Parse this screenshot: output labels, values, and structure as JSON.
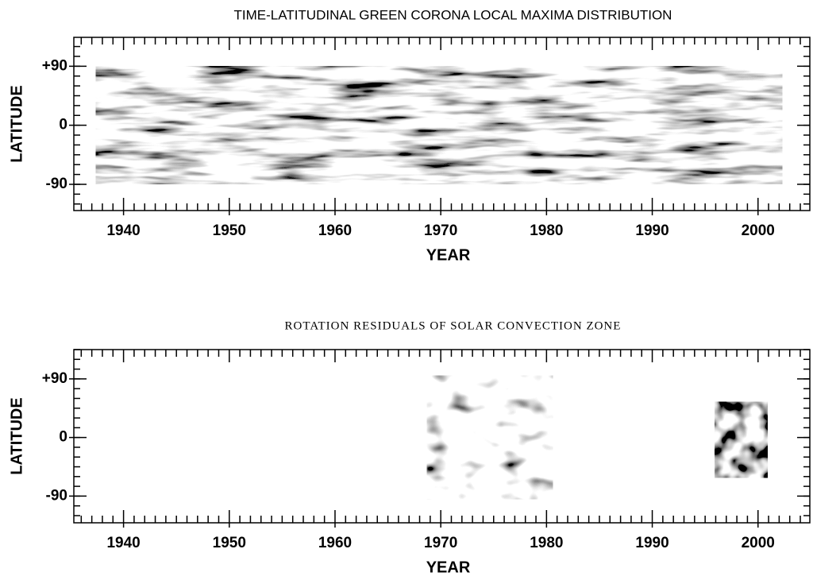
{
  "chart_data": [
    {
      "type": "heatmap",
      "title": "TIME-LATITUDINAL GREEN CORONA LOCAL MAXIMA DISTRIBUTION",
      "xlabel": "YEAR",
      "ylabel": "LATITUDE",
      "xlim": [
        1935.3,
        2004.9
      ],
      "ylim": [
        -130,
        134
      ],
      "xticks": [
        1940,
        1950,
        1960,
        1970,
        1980,
        1990,
        2000
      ],
      "yticks": [
        -90,
        0,
        {
          "value": 90,
          "label": "+90"
        }
      ],
      "x_minor_step": 1,
      "y_minor_step": 15,
      "images": [
        {
          "xlim": [
            1937.4,
            2002.3
          ],
          "ylim": [
            -90,
            90
          ]
        }
      ]
    },
    {
      "type": "heatmap",
      "title": "ROTATION RESIDUALS OF SOLAR CONVECTION ZONE",
      "xlabel": "YEAR",
      "ylabel": "LATITUDE",
      "xlim": [
        1935.3,
        2004.9
      ],
      "ylim": [
        -131,
        135
      ],
      "xticks": [
        1940,
        1950,
        1960,
        1970,
        1980,
        1990,
        2000
      ],
      "yticks": [
        -90,
        0,
        {
          "value": 90,
          "label": "+90"
        }
      ],
      "x_minor_step": 1,
      "y_minor_step": 15,
      "images": [
        {
          "xlim": [
            1968.7,
            1980.6
          ],
          "ylim": [
            -95,
            95
          ]
        },
        {
          "xlim": [
            1995.9,
            2000.9
          ],
          "ylim": [
            -62,
            55
          ]
        }
      ]
    }
  ]
}
